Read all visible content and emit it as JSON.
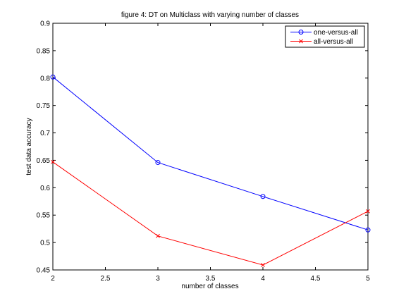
{
  "chart_data": {
    "type": "line",
    "title": "figure 4: DT on Multiclass with varying number of classes",
    "xlabel": "number of classes",
    "ylabel": "test data accuracy",
    "xlim": [
      2,
      5
    ],
    "ylim": [
      0.45,
      0.9
    ],
    "xticks": [
      "2",
      "2.5",
      "3",
      "3.5",
      "4",
      "4.5",
      "5"
    ],
    "xtick_values": [
      2,
      2.5,
      3,
      3.5,
      4,
      4.5,
      5
    ],
    "yticks": [
      "0.45",
      "0.5",
      "0.55",
      "0.6",
      "0.65",
      "0.7",
      "0.75",
      "0.8",
      "0.85",
      "0.9"
    ],
    "ytick_values": [
      0.45,
      0.5,
      0.55,
      0.6,
      0.65,
      0.7,
      0.75,
      0.8,
      0.85,
      0.9
    ],
    "grid": false,
    "legend_position": "top-right",
    "x": [
      2,
      3,
      4,
      5
    ],
    "series": [
      {
        "name": "one-versus-all",
        "values": [
          0.802,
          0.646,
          0.584,
          0.523
        ],
        "color": "#0000ff",
        "marker": "circle"
      },
      {
        "name": "all-versus-all",
        "values": [
          0.647,
          0.512,
          0.459,
          0.557
        ],
        "color": "#ff0000",
        "marker": "x"
      }
    ]
  }
}
